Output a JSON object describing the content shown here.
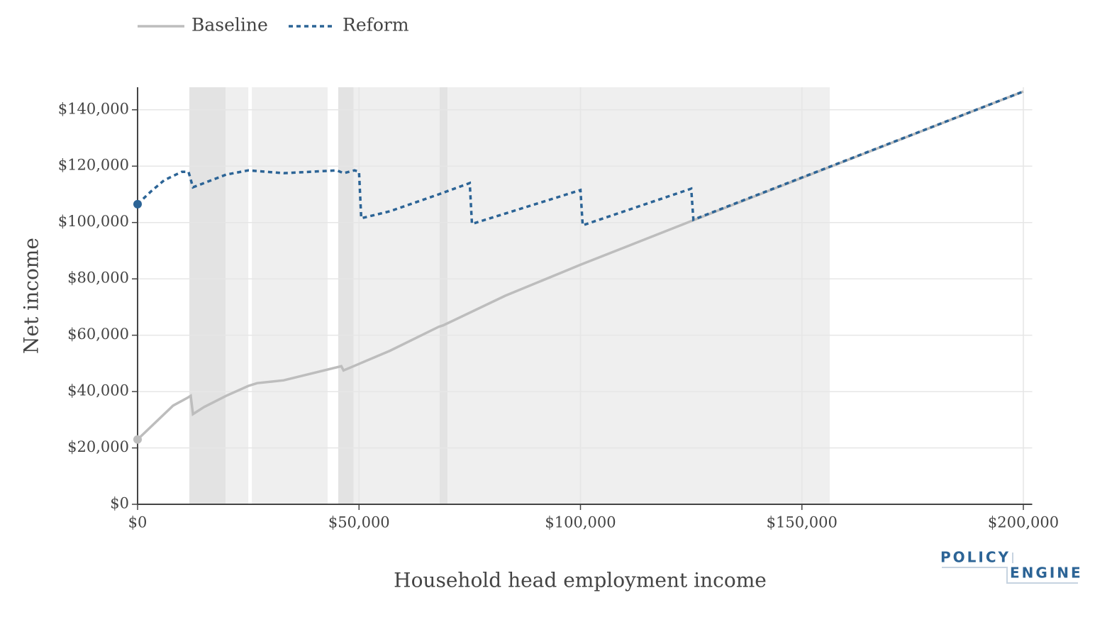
{
  "chart_data": {
    "type": "line",
    "xlabel": "Household head employment income",
    "ylabel": "Net income",
    "xlim": [
      0,
      202000
    ],
    "ylim": [
      0,
      148000
    ],
    "xticks": [
      {
        "value": 0,
        "label": "$0"
      },
      {
        "value": 50000,
        "label": "$50,000"
      },
      {
        "value": 100000,
        "label": "$100,000"
      },
      {
        "value": 150000,
        "label": "$150,000"
      },
      {
        "value": 200000,
        "label": "$200,000"
      }
    ],
    "yticks": [
      {
        "value": 0,
        "label": "$0"
      },
      {
        "value": 20000,
        "label": "$20,000"
      },
      {
        "value": 40000,
        "label": "$40,000"
      },
      {
        "value": 60000,
        "label": "$60,000"
      },
      {
        "value": 80000,
        "label": "$80,000"
      },
      {
        "value": 100000,
        "label": "$100,000"
      },
      {
        "value": 120000,
        "label": "$120,000"
      },
      {
        "value": 140000,
        "label": "$140,000"
      }
    ],
    "grid": true,
    "legend": "top-left",
    "shaded_regions": [
      {
        "x": [
          11700,
          19900
        ],
        "color": "#e3e3e3"
      },
      {
        "x": [
          19900,
          25000
        ],
        "color": "#efefef"
      },
      {
        "x": [
          25800,
          42900
        ],
        "color": "#efefef"
      },
      {
        "x": [
          45300,
          48800
        ],
        "color": "#e3e3e3"
      },
      {
        "x": [
          48800,
          68200
        ],
        "color": "#efefef"
      },
      {
        "x": [
          68200,
          70000
        ],
        "color": "#e3e3e3"
      },
      {
        "x": [
          70000,
          156300
        ],
        "color": "#efefef"
      }
    ],
    "series": [
      {
        "name": "Baseline",
        "color": "#bdbdbd",
        "dash": "solid",
        "x": [
          0,
          8000,
          11500,
          12000,
          12500,
          15000,
          20000,
          25000,
          27000,
          33000,
          46000,
          46500,
          48000,
          57000,
          68000,
          69000,
          83000,
          100000,
          125000,
          200000
        ],
        "values": [
          23000,
          35000,
          38000,
          38500,
          32000,
          34500,
          38500,
          42000,
          43000,
          44000,
          49000,
          47500,
          48500,
          54500,
          63000,
          63500,
          74000,
          85000,
          100500,
          146500
        ]
      },
      {
        "name": "Reform",
        "color": "#2c6496",
        "dash": "dotted",
        "x": [
          0,
          3000,
          6000,
          10000,
          11500,
          12500,
          15000,
          20000,
          25000,
          33000,
          45000,
          46500,
          49000,
          50000,
          50500,
          57000,
          68000,
          75000,
          75500,
          100000,
          100500,
          125000,
          125500,
          200000
        ],
        "values": [
          106500,
          111000,
          115000,
          118000,
          118000,
          112500,
          114000,
          117000,
          118500,
          117500,
          118500,
          117500,
          118500,
          118000,
          101500,
          104000,
          110000,
          114000,
          99500,
          111500,
          99000,
          112000,
          101000,
          146500
        ]
      }
    ]
  },
  "branding": {
    "line1": "POLICY",
    "line2": "ENGINE"
  }
}
